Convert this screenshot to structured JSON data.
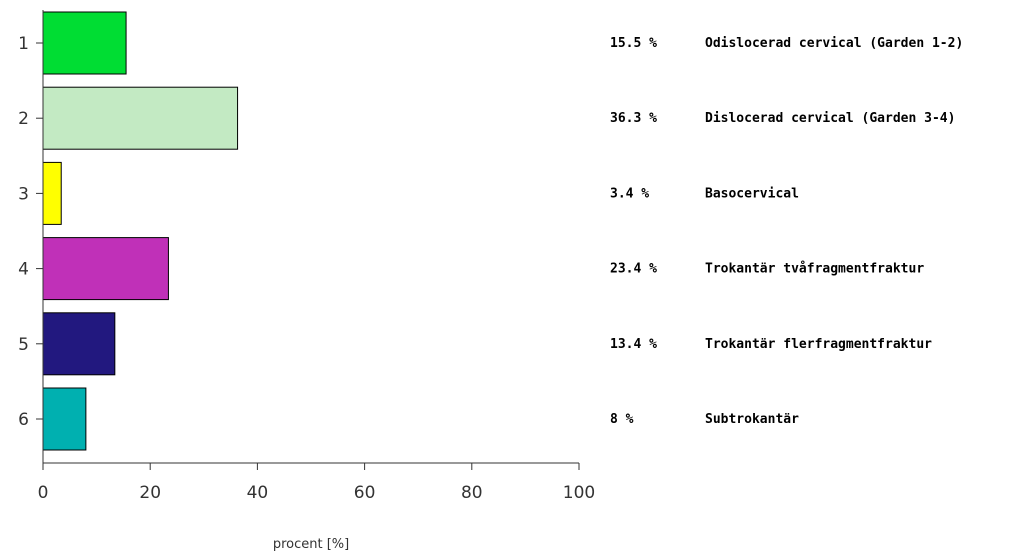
{
  "chart_data": {
    "type": "bar",
    "orientation": "horizontal",
    "categories": [
      "1",
      "2",
      "3",
      "4",
      "5",
      "6"
    ],
    "values": [
      15.5,
      36.3,
      3.4,
      23.4,
      13.4,
      8
    ],
    "value_labels": [
      "15.5 %",
      "36.3 %",
      "3.4 %",
      "23.4 %",
      "13.4 %",
      "8 %"
    ],
    "descriptions": [
      "Odislocerad cervical (Garden 1-2)",
      "Dislocerad cervical (Garden 3-4)",
      "Basocervical",
      "Trokantär tvåfragmentfraktur",
      "Trokantär flerfragmentfraktur",
      "Subtrokantär"
    ],
    "colors": [
      "#00dd33",
      "#c3eac3",
      "#ffff00",
      "#c030b8",
      "#22187f",
      "#00b0b0"
    ],
    "xlabel": "procent [%]",
    "ylabel": "",
    "xlim": [
      0,
      100
    ],
    "xticks": [
      "0",
      "20",
      "40",
      "60",
      "80",
      "100"
    ],
    "grid": false
  }
}
